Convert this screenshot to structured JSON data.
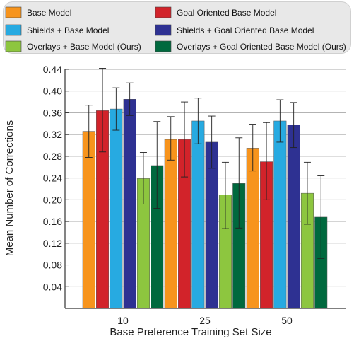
{
  "chart_data": {
    "type": "bar",
    "categories": [
      "10",
      "25",
      "50"
    ],
    "xlabel": "Base Preference Training Set Size",
    "ylabel": "Mean Number of Corrections",
    "ylim": [
      0,
      0.44
    ],
    "yticks": [
      "0.04",
      "0.08",
      "0.12",
      "0.16",
      "0.20",
      "0.24",
      "0.28",
      "0.32",
      "0.36",
      "0.40",
      "0.44"
    ],
    "grid": "horizontal",
    "legend_position": "top",
    "series": [
      {
        "name": "Base Model",
        "color": "#f7941d",
        "values": [
          0.326,
          0.311,
          0.295
        ],
        "err_low": [
          0.278,
          0.273,
          0.253
        ],
        "err_high": [
          0.374,
          0.353,
          0.339
        ]
      },
      {
        "name": "Goal Oriented Base Model",
        "color": "#d2232a",
        "values": [
          0.364,
          0.311,
          0.27
        ],
        "err_low": [
          0.288,
          0.242,
          0.2
        ],
        "err_high": [
          0.442,
          0.38,
          0.342
        ]
      },
      {
        "name": "Shields + Base Model",
        "color": "#27aae1",
        "values": [
          0.367,
          0.345,
          0.345
        ],
        "err_low": [
          0.328,
          0.303,
          0.306
        ],
        "err_high": [
          0.406,
          0.387,
          0.384
        ]
      },
      {
        "name": "Shields + Goal Oriented Base Model",
        "color": "#2e3192",
        "values": [
          0.385,
          0.306,
          0.338
        ],
        "err_low": [
          0.355,
          0.258,
          0.296
        ],
        "err_high": [
          0.415,
          0.354,
          0.379
        ]
      },
      {
        "name": "Overlays + Base Model (Ours)",
        "color": "#8dc63f",
        "values": [
          0.239,
          0.209,
          0.212
        ],
        "err_low": [
          0.192,
          0.147,
          0.155
        ],
        "err_high": [
          0.287,
          0.269,
          0.269
        ]
      },
      {
        "name": "Overlays + Goal Oriented Base Model (Ours)",
        "color": "#00693e",
        "values": [
          0.263,
          0.23,
          0.168
        ],
        "err_low": [
          0.184,
          0.148,
          0.092
        ],
        "err_high": [
          0.344,
          0.314,
          0.244
        ]
      }
    ]
  }
}
